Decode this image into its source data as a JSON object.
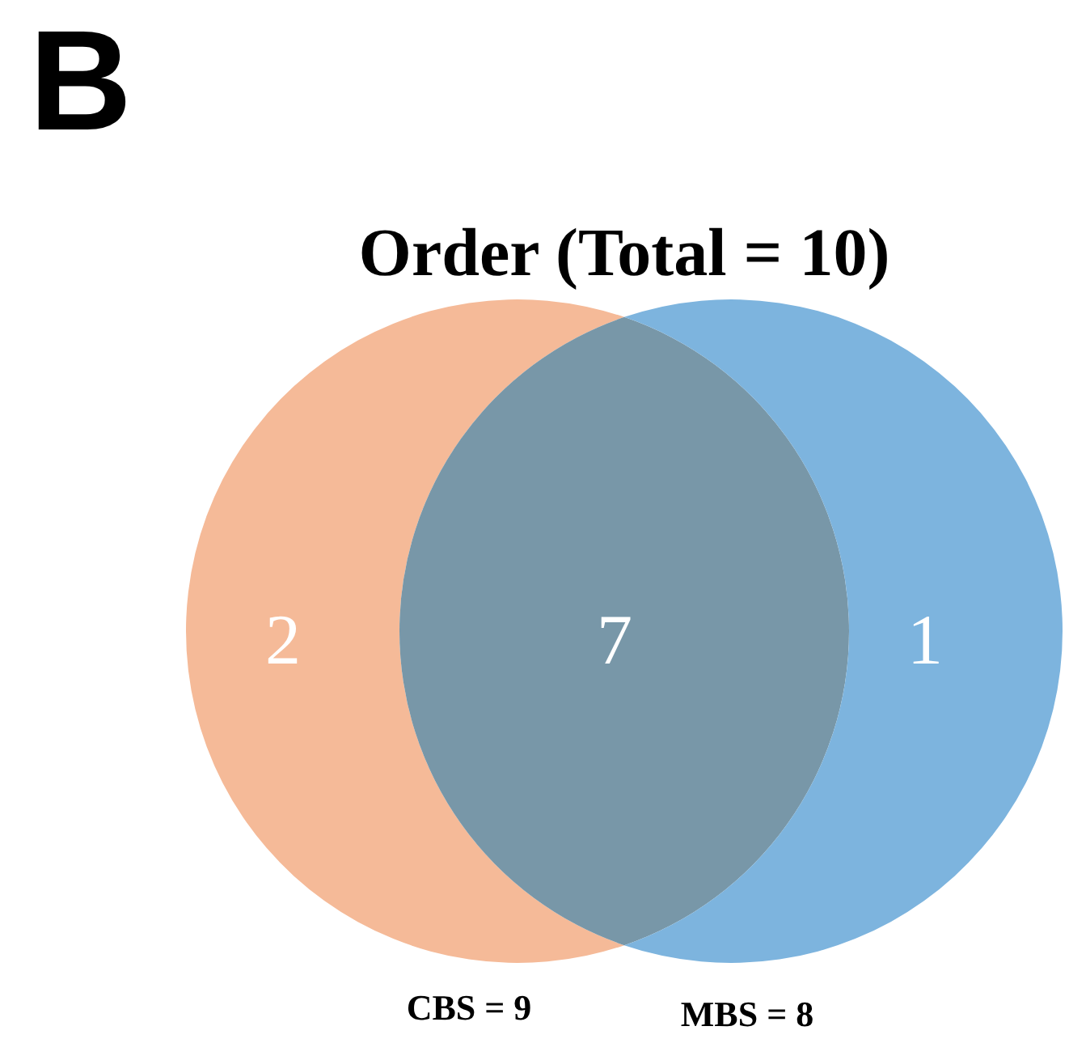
{
  "chart_data": {
    "type": "other",
    "title": "Order (Total = 10)",
    "categories": [
      null,
      null,
      null
    ],
    "values": [
      2,
      7,
      1
    ],
    "colors": [
      "#f5ba98",
      "#7897a8",
      "#7db4de"
    ],
    "data_labels": true,
    "annotations": [
      "B",
      "CBS = 9",
      "MBS = 8"
    ]
  }
}
